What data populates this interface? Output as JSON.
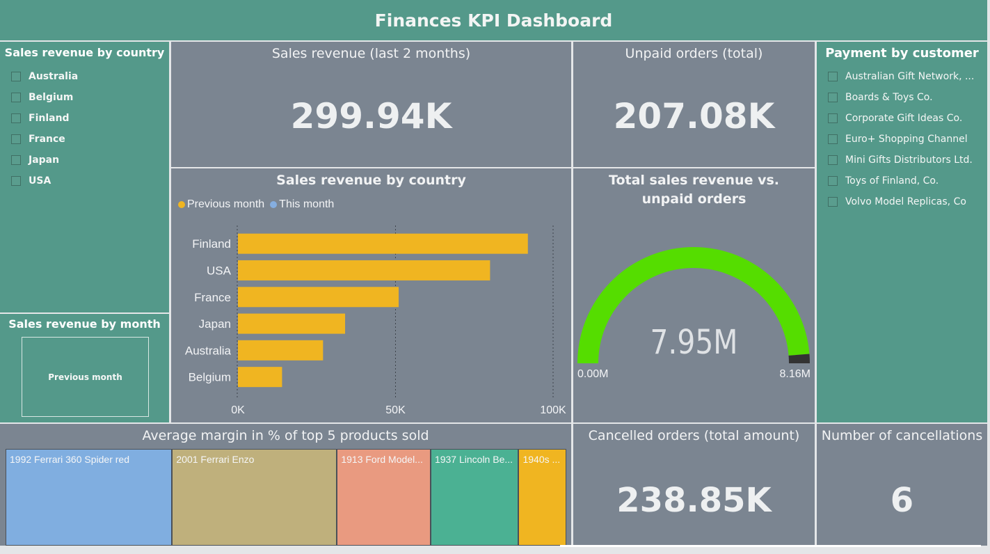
{
  "header": {
    "title": "Finances KPI Dashboard"
  },
  "colors": {
    "teal": "#54998a",
    "panel_gray": "#7b8591",
    "previous_month": "#f0b521",
    "this_month": "#85aee0",
    "gauge_fill": "#55dd00",
    "gauge_rest": "#333333"
  },
  "country_slicer": {
    "title": "Sales revenue by country",
    "items": [
      "Australia",
      "Belgium",
      "Finland",
      "France",
      "Japan",
      "USA"
    ]
  },
  "month_slicer": {
    "title": "Sales revenue by month",
    "selected": "Previous month"
  },
  "kpi_revenue": {
    "title": "Sales revenue (last 2 months)",
    "value": "299.94K"
  },
  "kpi_unpaid": {
    "title": "Unpaid orders (total)",
    "value": "207.08K"
  },
  "customer_slicer": {
    "title": "Payment by customer",
    "items": [
      "Australian Gift Network, ...",
      "Boards & Toys Co.",
      "Corporate Gift Ideas Co.",
      "Euro+ Shopping Channel",
      "Mini Gifts Distributors Ltd.",
      "Toys of Finland, Co.",
      "Volvo Model Replicas, Co"
    ]
  },
  "bar_chart": {
    "title": "Sales revenue by country",
    "legend": [
      {
        "name": "Previous month",
        "color": "#f0b521"
      },
      {
        "name": "This month",
        "color": "#85aee0"
      }
    ],
    "tick_labels": [
      "0K",
      "50K",
      "100K"
    ]
  },
  "gauge": {
    "title": "Total sales revenue vs. unpaid orders",
    "value_label": "7.95M",
    "min_label": "0.00M",
    "max_label": "8.16M"
  },
  "treemap": {
    "title": "Average margin in % of top 5 products sold",
    "items": [
      {
        "label": "1992 Ferrari 360 Spider red",
        "color": "#80aee0"
      },
      {
        "label": "2001 Ferrari Enzo",
        "color": "#bfb07c"
      },
      {
        "label": "1913 Ford Model...",
        "color": "#e99a80"
      },
      {
        "label": "1937 Lincoln Be...",
        "color": "#4bb193"
      },
      {
        "label": "1940s ...",
        "color": "#f0b521"
      }
    ]
  },
  "kpi_cancelled": {
    "title": "Cancelled orders (total amount)",
    "value": "238.85K"
  },
  "kpi_cancellations": {
    "title": "Number of cancellations",
    "value": "6"
  },
  "chart_data": [
    {
      "type": "bar",
      "orientation": "horizontal",
      "title": "Sales revenue by country",
      "categories": [
        "Finland",
        "USA",
        "France",
        "Japan",
        "Australia",
        "Belgium"
      ],
      "series": [
        {
          "name": "Previous month",
          "values": [
            92,
            80,
            51,
            34,
            27,
            14
          ]
        }
      ],
      "xlim": [
        0,
        100
      ],
      "x_ticks": [
        "0K",
        "50K",
        "100K"
      ],
      "grid": true,
      "legend": "top-left"
    },
    {
      "type": "gauge",
      "title": "Total sales revenue vs. unpaid orders",
      "value": 7.95,
      "min": 0,
      "max": 8.16,
      "unit": "M"
    },
    {
      "type": "treemap",
      "title": "Average margin in % of top 5 products sold",
      "categories": [
        "1992 Ferrari 360 Spider red",
        "2001 Ferrari Enzo",
        "1913 Ford Model...",
        "1937 Lincoln Be...",
        "1940s ..."
      ],
      "shares": [
        0.297,
        0.294,
        0.167,
        0.157,
        0.085
      ]
    }
  ]
}
